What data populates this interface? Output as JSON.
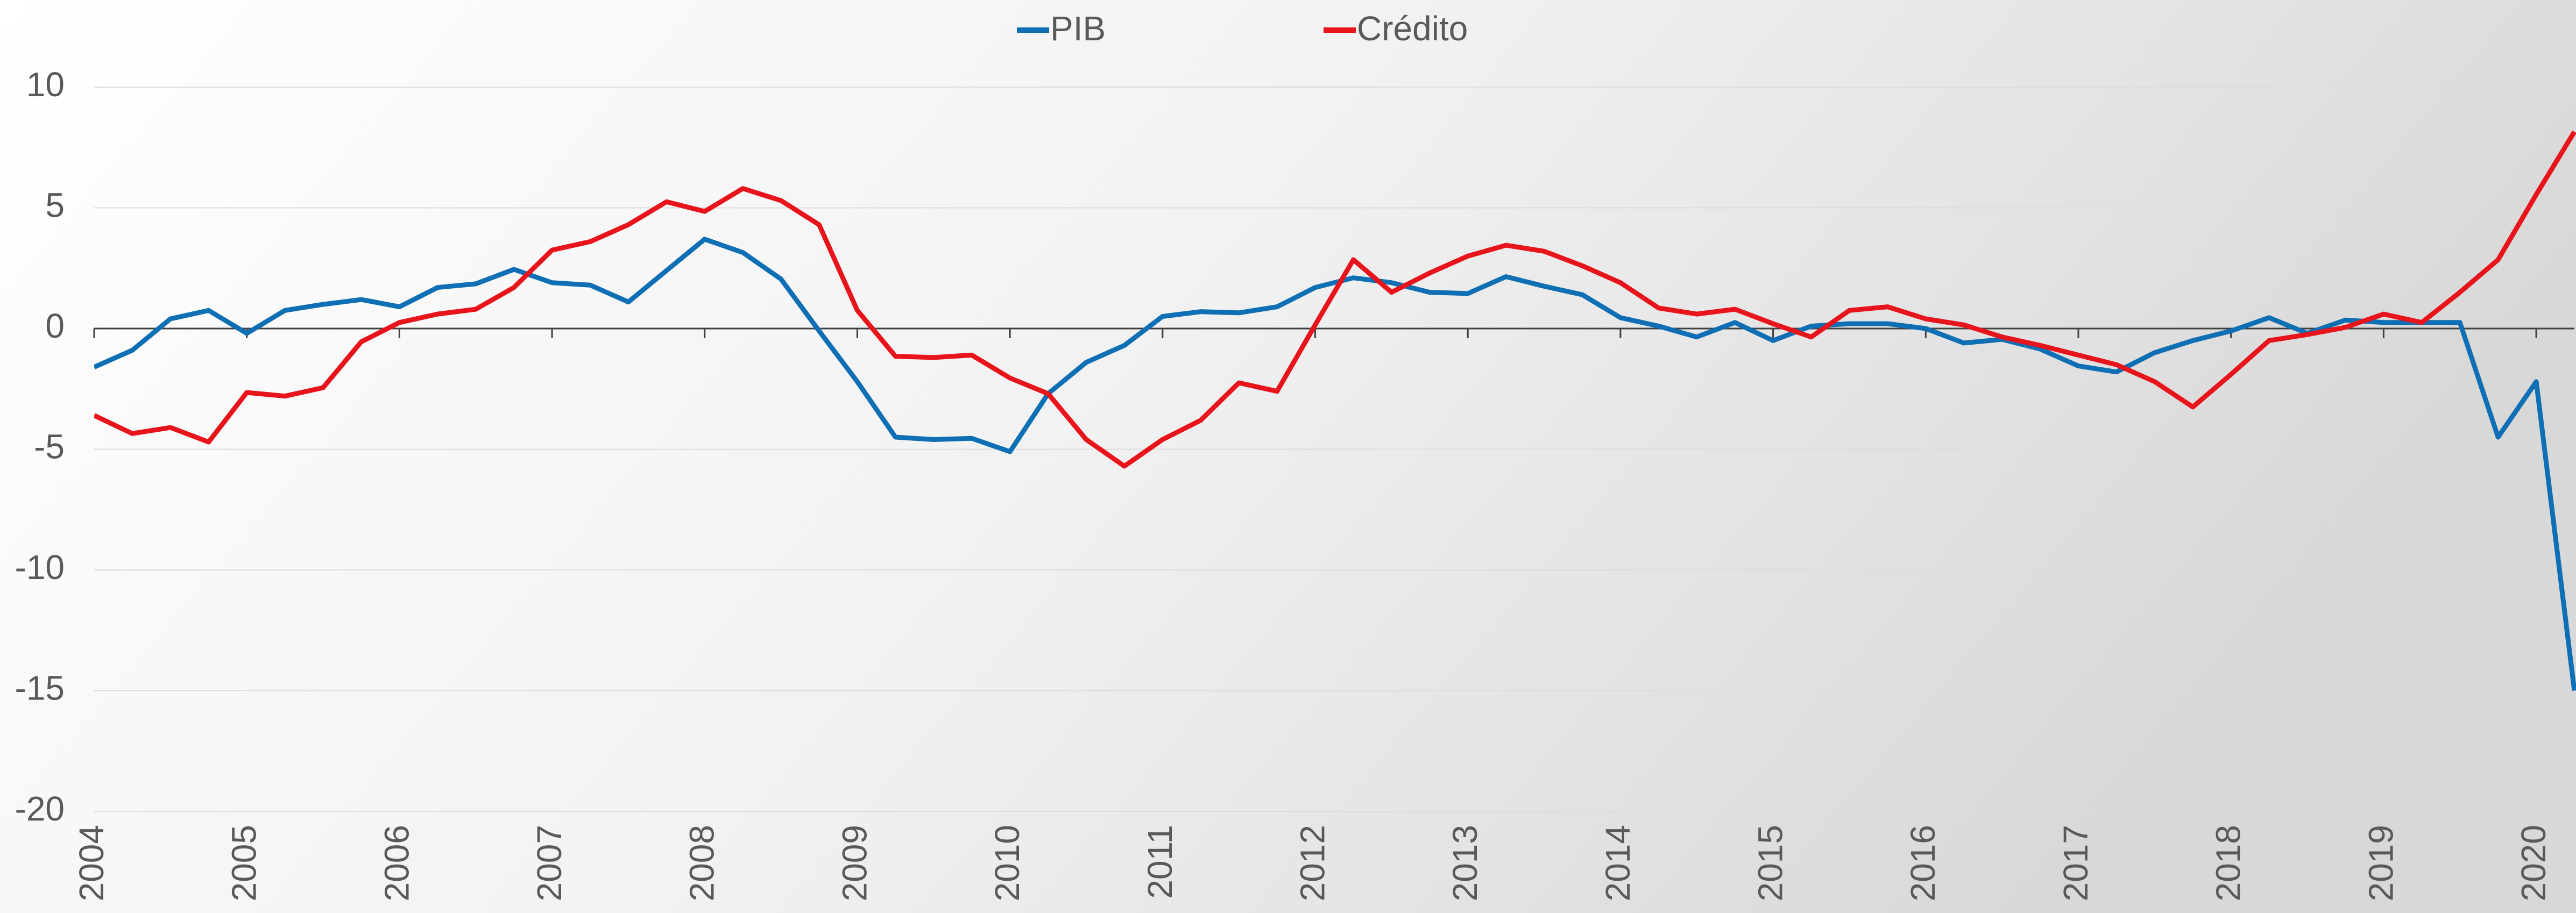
{
  "chart_data": {
    "type": "line",
    "x": [
      2004,
      2004.25,
      2004.5,
      2004.75,
      2005,
      2005.25,
      2005.5,
      2005.75,
      2006,
      2006.25,
      2006.5,
      2006.75,
      2007,
      2007.25,
      2007.5,
      2007.75,
      2008,
      2008.25,
      2008.5,
      2008.75,
      2009,
      2009.25,
      2009.5,
      2009.75,
      2010,
      2010.25,
      2010.5,
      2010.75,
      2011,
      2011.25,
      2011.5,
      2011.75,
      2012,
      2012.25,
      2012.5,
      2012.75,
      2013,
      2013.25,
      2013.5,
      2013.75,
      2014,
      2014.25,
      2014.5,
      2014.75,
      2015,
      2015.25,
      2015.5,
      2015.75,
      2016,
      2016.25,
      2016.5,
      2016.75,
      2017,
      2017.25,
      2017.5,
      2017.75,
      2018,
      2018.25,
      2018.5,
      2018.75,
      2019,
      2019.25,
      2019.5,
      2019.75,
      2020,
      2020.25
    ],
    "series": [
      {
        "name": "PIB",
        "color": "#0f6fb5",
        "values": [
          -1.6,
          -0.9,
          0.4,
          0.75,
          -0.2,
          0.75,
          1.0,
          1.2,
          0.9,
          1.7,
          1.85,
          2.45,
          1.9,
          1.8,
          1.1,
          2.4,
          3.7,
          3.15,
          2.05,
          -0.1,
          -2.2,
          -4.5,
          -4.6,
          -4.55,
          -5.1,
          -2.7,
          -1.4,
          -0.7,
          0.5,
          0.7,
          0.65,
          0.9,
          1.7,
          2.1,
          1.9,
          1.5,
          1.45,
          2.15,
          1.75,
          1.4,
          0.45,
          0.1,
          -0.35,
          0.25,
          -0.5,
          0.1,
          0.2,
          0.2,
          0,
          -0.6,
          -0.45,
          -0.85,
          -1.55,
          -1.8,
          -1.0,
          -0.5,
          -0.1,
          0.45,
          -0.2,
          0.35,
          0.25,
          0.25,
          0.25,
          -4.5,
          -2.2,
          -15
        ]
      },
      {
        "name": "Crédito",
        "color": "#e8141b",
        "values": [
          -3.6,
          -4.35,
          -4.1,
          -4.7,
          -2.65,
          -2.8,
          -2.45,
          -0.55,
          0.25,
          0.6,
          0.8,
          1.7,
          3.25,
          3.6,
          4.3,
          5.25,
          4.85,
          5.8,
          5.3,
          4.3,
          0.75,
          -1.15,
          -1.2,
          -1.1,
          -2.05,
          -2.7,
          -4.6,
          -5.7,
          -4.6,
          -3.8,
          -2.25,
          -2.6,
          0.15,
          2.85,
          1.5,
          2.3,
          3.0,
          3.45,
          3.2,
          2.6,
          1.9,
          0.85,
          0.6,
          0.8,
          0.2,
          -0.35,
          0.75,
          0.9,
          0.4,
          0.15,
          -0.35,
          -0.7,
          -1.1,
          -1.5,
          -2.2,
          -3.25,
          -1.9,
          -0.5,
          -0.25,
          0.05,
          0.6,
          0.25,
          1.5,
          2.85,
          5.55,
          8.15
        ]
      }
    ],
    "xlim": [
      2004,
      2020.25
    ],
    "xticks": [
      2004,
      2005,
      2006,
      2007,
      2008,
      2009,
      2010,
      2011,
      2012,
      2013,
      2014,
      2015,
      2016,
      2017,
      2018,
      2019,
      2020
    ],
    "ylim": [
      -20,
      10
    ],
    "yticks": [
      -20,
      -15,
      -10,
      -5,
      0,
      5,
      10
    ],
    "grid": true,
    "legend": "top"
  }
}
